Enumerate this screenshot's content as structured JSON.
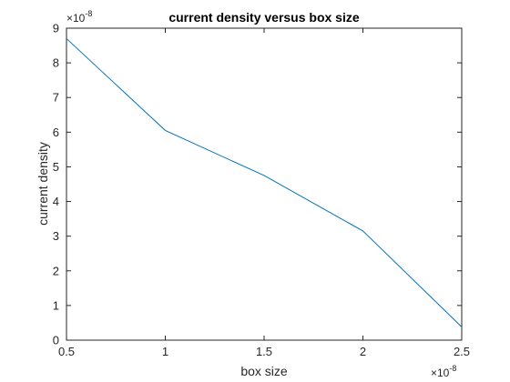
{
  "chart_data": {
    "type": "line",
    "title": "current density versus box size",
    "xlabel": "box size",
    "ylabel": "current density",
    "x_exponent_label": {
      "base": "×10",
      "power": "-8"
    },
    "y_exponent_label": {
      "base": "×10",
      "power": "-8"
    },
    "xlim": [
      0.5,
      2.5
    ],
    "ylim": [
      0,
      9
    ],
    "x_ticks": [
      0.5,
      1,
      1.5,
      2,
      2.5
    ],
    "x_tick_labels": [
      "0.5",
      "1",
      "1.5",
      "2",
      "2.5"
    ],
    "y_ticks": [
      0,
      1,
      2,
      3,
      4,
      5,
      6,
      7,
      8,
      9
    ],
    "y_tick_labels": [
      "0",
      "1",
      "2",
      "3",
      "4",
      "5",
      "6",
      "7",
      "8",
      "9"
    ],
    "grid": false,
    "line_color": "#0072BD",
    "series": [
      {
        "x": [
          0.5,
          1,
          1.5,
          2,
          2.5
        ],
        "y": [
          8.7,
          6.05,
          4.75,
          3.15,
          0.38
        ]
      }
    ]
  }
}
